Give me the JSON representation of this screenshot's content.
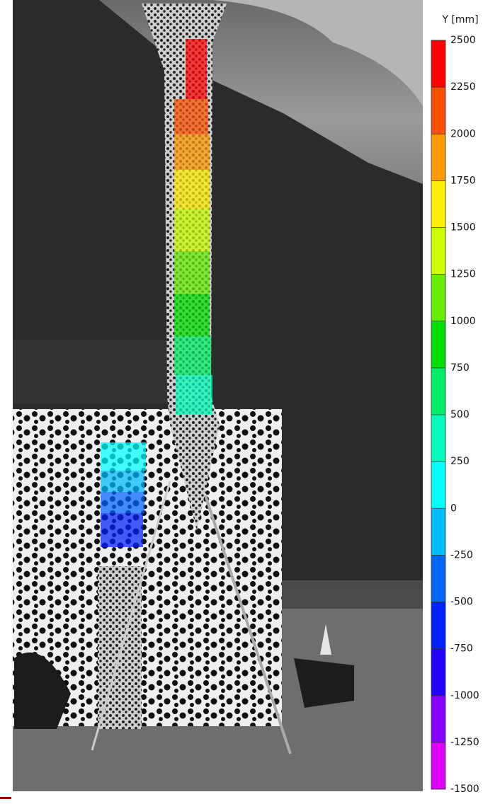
{
  "colorbar": {
    "label": "Y [mm]",
    "clim": [
      -1500,
      2500
    ],
    "ticks": [
      2500,
      2250,
      2000,
      1750,
      1500,
      1250,
      1000,
      750,
      500,
      250,
      0,
      -250,
      -500,
      -750,
      -1000,
      -1250,
      -1500
    ],
    "colors": [
      "#dd00ff",
      "#8800ff",
      "#2200ff",
      "#0022ff",
      "#0066ff",
      "#00bbff",
      "#00ffff",
      "#00ffbb",
      "#00ee66",
      "#00dd00",
      "#66ee00",
      "#ccff00",
      "#ffee00",
      "#ff9900",
      "#ff5000",
      "#ff0000"
    ]
  }
}
